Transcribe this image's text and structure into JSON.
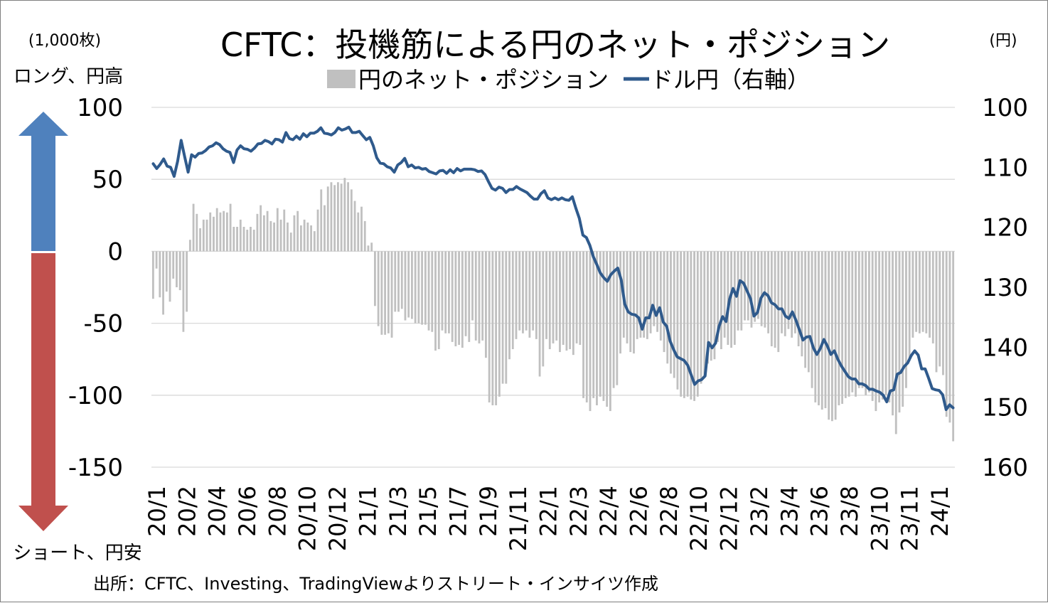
{
  "chart_data": {
    "type": "bar+line",
    "title": "CFTC：投機筋による円のネット・ポジション",
    "left_unit": "(1,000枚)",
    "right_unit": "(円)",
    "left_top_label": "ロング、円高",
    "left_bottom_label": "ショート、円安",
    "source": "出所：CFTC、Investing、TradingViewよりストリート・インサイツ作成",
    "legend": [
      "円のネット・ポジション",
      "ドル円（右軸）"
    ],
    "left_axis": {
      "min": -150,
      "max": 100,
      "ticks": [
        100,
        50,
        0,
        -50,
        -100,
        -150
      ]
    },
    "right_axis": {
      "min": 100,
      "max": 160,
      "inverted": true,
      "ticks": [
        100,
        110,
        120,
        130,
        140,
        150,
        160
      ]
    },
    "x_tick_labels": [
      "20/1",
      "20/2",
      "20/4",
      "20/6",
      "20/8",
      "20/10",
      "20/12",
      "21/1",
      "21/3",
      "21/5",
      "21/7",
      "21/9",
      "21/11",
      "22/1",
      "22/3",
      "22/4",
      "22/6",
      "22/8",
      "22/10",
      "22/12",
      "23/2",
      "23/4",
      "23/6",
      "23/8",
      "23/10",
      "23/11",
      "24/1"
    ],
    "colors": {
      "bars": "#c0c0c0",
      "line": "#2f5a8c",
      "grid": "#d9d9d9",
      "arrow_up": "#4f81bd",
      "arrow_down": "#c0504d"
    },
    "series": [
      {
        "name": "円のネット・ポジション",
        "kind": "bar",
        "values": [
          -33,
          -12,
          -32,
          -44,
          -28,
          -35,
          -19,
          -25,
          -27,
          -56,
          -42,
          8,
          33,
          26,
          16,
          22,
          22,
          27,
          24,
          30,
          27,
          28,
          27,
          33,
          17,
          17,
          22,
          17,
          15,
          17,
          15,
          26,
          32,
          25,
          28,
          21,
          20,
          30,
          22,
          29,
          20,
          13,
          25,
          28,
          18,
          22,
          20,
          18,
          14,
          29,
          43,
          32,
          45,
          48,
          46,
          48,
          47,
          51,
          48,
          43,
          35,
          27,
          31,
          21,
          4,
          6,
          -38,
          -52,
          -58,
          -58,
          -57,
          -60,
          -42,
          -42,
          -40,
          -48,
          -46,
          -47,
          -50,
          -50,
          -51,
          -51,
          -55,
          -56,
          -69,
          -68,
          -55,
          -57,
          -57,
          -63,
          -66,
          -65,
          -67,
          -59,
          -63,
          -48,
          -62,
          -64,
          -62,
          -74,
          -105,
          -107,
          -107,
          -101,
          -92,
          -92,
          -75,
          -68,
          -61,
          -55,
          -57,
          -55,
          -60,
          -55,
          -61,
          -87,
          -80,
          -61,
          -68,
          -64,
          -62,
          -70,
          -65,
          -69,
          -68,
          -72,
          -64,
          -65,
          -102,
          -105,
          -111,
          -102,
          -107,
          -101,
          -104,
          -108,
          -111,
          -95,
          -93,
          -71,
          -60,
          -64,
          -70,
          -71,
          -61,
          -60,
          -60,
          -61,
          -57,
          -52,
          -56,
          -62,
          -70,
          -78,
          -85,
          -88,
          -96,
          -101,
          -102,
          -101,
          -103,
          -104,
          -101,
          -92,
          -88,
          -78,
          -76,
          -75,
          -63,
          -68,
          -60,
          -65,
          -67,
          -65,
          -55,
          -55,
          -48,
          -48,
          -53,
          -49,
          -47,
          -52,
          -53,
          -57,
          -66,
          -67,
          -70,
          -57,
          -59,
          -54,
          -60,
          -57,
          -66,
          -73,
          -81,
          -84,
          -95,
          -105,
          -107,
          -110,
          -109,
          -117,
          -118,
          -117,
          -107,
          -106,
          -102,
          -101,
          -98,
          -101,
          -95,
          -95,
          -100,
          -98,
          -104,
          -111,
          -105,
          -103,
          -100,
          -105,
          -114,
          -127,
          -112,
          -108,
          -95,
          -74,
          -60,
          -56,
          -57,
          -56,
          -57,
          -60,
          -64,
          -84,
          -80,
          -86,
          -115,
          -119,
          -132
        ]
      },
      {
        "name": "ドル円（右軸）",
        "kind": "line",
        "values": [
          109.4,
          110.2,
          109.5,
          108.6,
          109.8,
          110.0,
          111.5,
          109.0,
          105.5,
          108.2,
          110.8,
          107.9,
          108.3,
          107.7,
          107.6,
          107.2,
          106.6,
          106.4,
          105.9,
          106.2,
          106.9,
          107.3,
          107.5,
          109.2,
          107.1,
          106.4,
          106.9,
          107.0,
          107.3,
          106.8,
          106.1,
          106.0,
          105.5,
          105.7,
          106.1,
          105.3,
          105.4,
          105.8,
          104.2,
          105.2,
          105.4,
          104.8,
          105.3,
          104.4,
          104.9,
          104.3,
          104.3,
          104.0,
          103.4,
          104.3,
          104.4,
          104.6,
          104.2,
          103.4,
          103.8,
          103.6,
          103.3,
          104.2,
          104.2,
          104.0,
          104.7,
          105.4,
          105.0,
          106.4,
          108.4,
          109.3,
          109.4,
          109.9,
          110.1,
          110.8,
          109.6,
          109.2,
          108.5,
          109.9,
          109.6,
          110.1,
          110.0,
          110.3,
          110.2,
          110.7,
          110.9,
          111.1,
          110.6,
          110.5,
          111.0,
          110.4,
          110.9,
          110.2,
          110.6,
          110.3,
          110.3,
          110.3,
          110.4,
          110.7,
          110.6,
          111.2,
          112.4,
          113.5,
          113.8,
          113.3,
          113.5,
          114.2,
          113.7,
          113.7,
          113.2,
          113.6,
          113.9,
          114.2,
          114.8,
          115.3,
          115.3,
          114.4,
          113.9,
          115.1,
          115.4,
          115.1,
          115.4,
          115.1,
          115.4,
          115.5,
          114.9,
          116.8,
          118.5,
          121.3,
          121.7,
          123.0,
          124.9,
          126.2,
          127.6,
          128.4,
          129.0,
          127.9,
          127.3,
          126.8,
          128.8,
          132.8,
          134.1,
          134.5,
          134.6,
          135.1,
          137.0,
          135.1,
          135.1,
          133.0,
          134.7,
          133.4,
          135.8,
          136.5,
          139.0,
          140.4,
          141.6,
          141.9,
          142.2,
          143.0,
          144.6,
          146.2,
          145.6,
          145.4,
          144.8,
          139.2,
          140.1,
          139.3,
          136.5,
          134.9,
          135.7,
          132.0,
          130.2,
          131.5,
          128.9,
          129.3,
          130.6,
          131.9,
          134.8,
          134.2,
          131.8,
          130.9,
          131.4,
          132.6,
          132.9,
          133.6,
          133.6,
          134.8,
          135.2,
          134.1,
          135.5,
          137.1,
          138.8,
          138.3,
          138.2,
          140.1,
          141.2,
          140.2,
          138.7,
          139.8,
          141.2,
          140.6,
          142.0,
          143.1,
          144.0,
          144.9,
          145.3,
          145.3,
          146.1,
          146.1,
          146.4,
          147.0,
          147.0,
          147.3,
          147.5,
          148.0,
          149.1,
          147.3,
          147.1,
          144.5,
          144.2,
          143.2,
          142.6,
          141.4,
          140.6,
          141.3,
          143.6,
          143.6,
          145.2,
          146.9,
          147.1,
          147.2,
          147.9,
          150.4,
          149.6,
          150.1
        ]
      }
    ]
  }
}
